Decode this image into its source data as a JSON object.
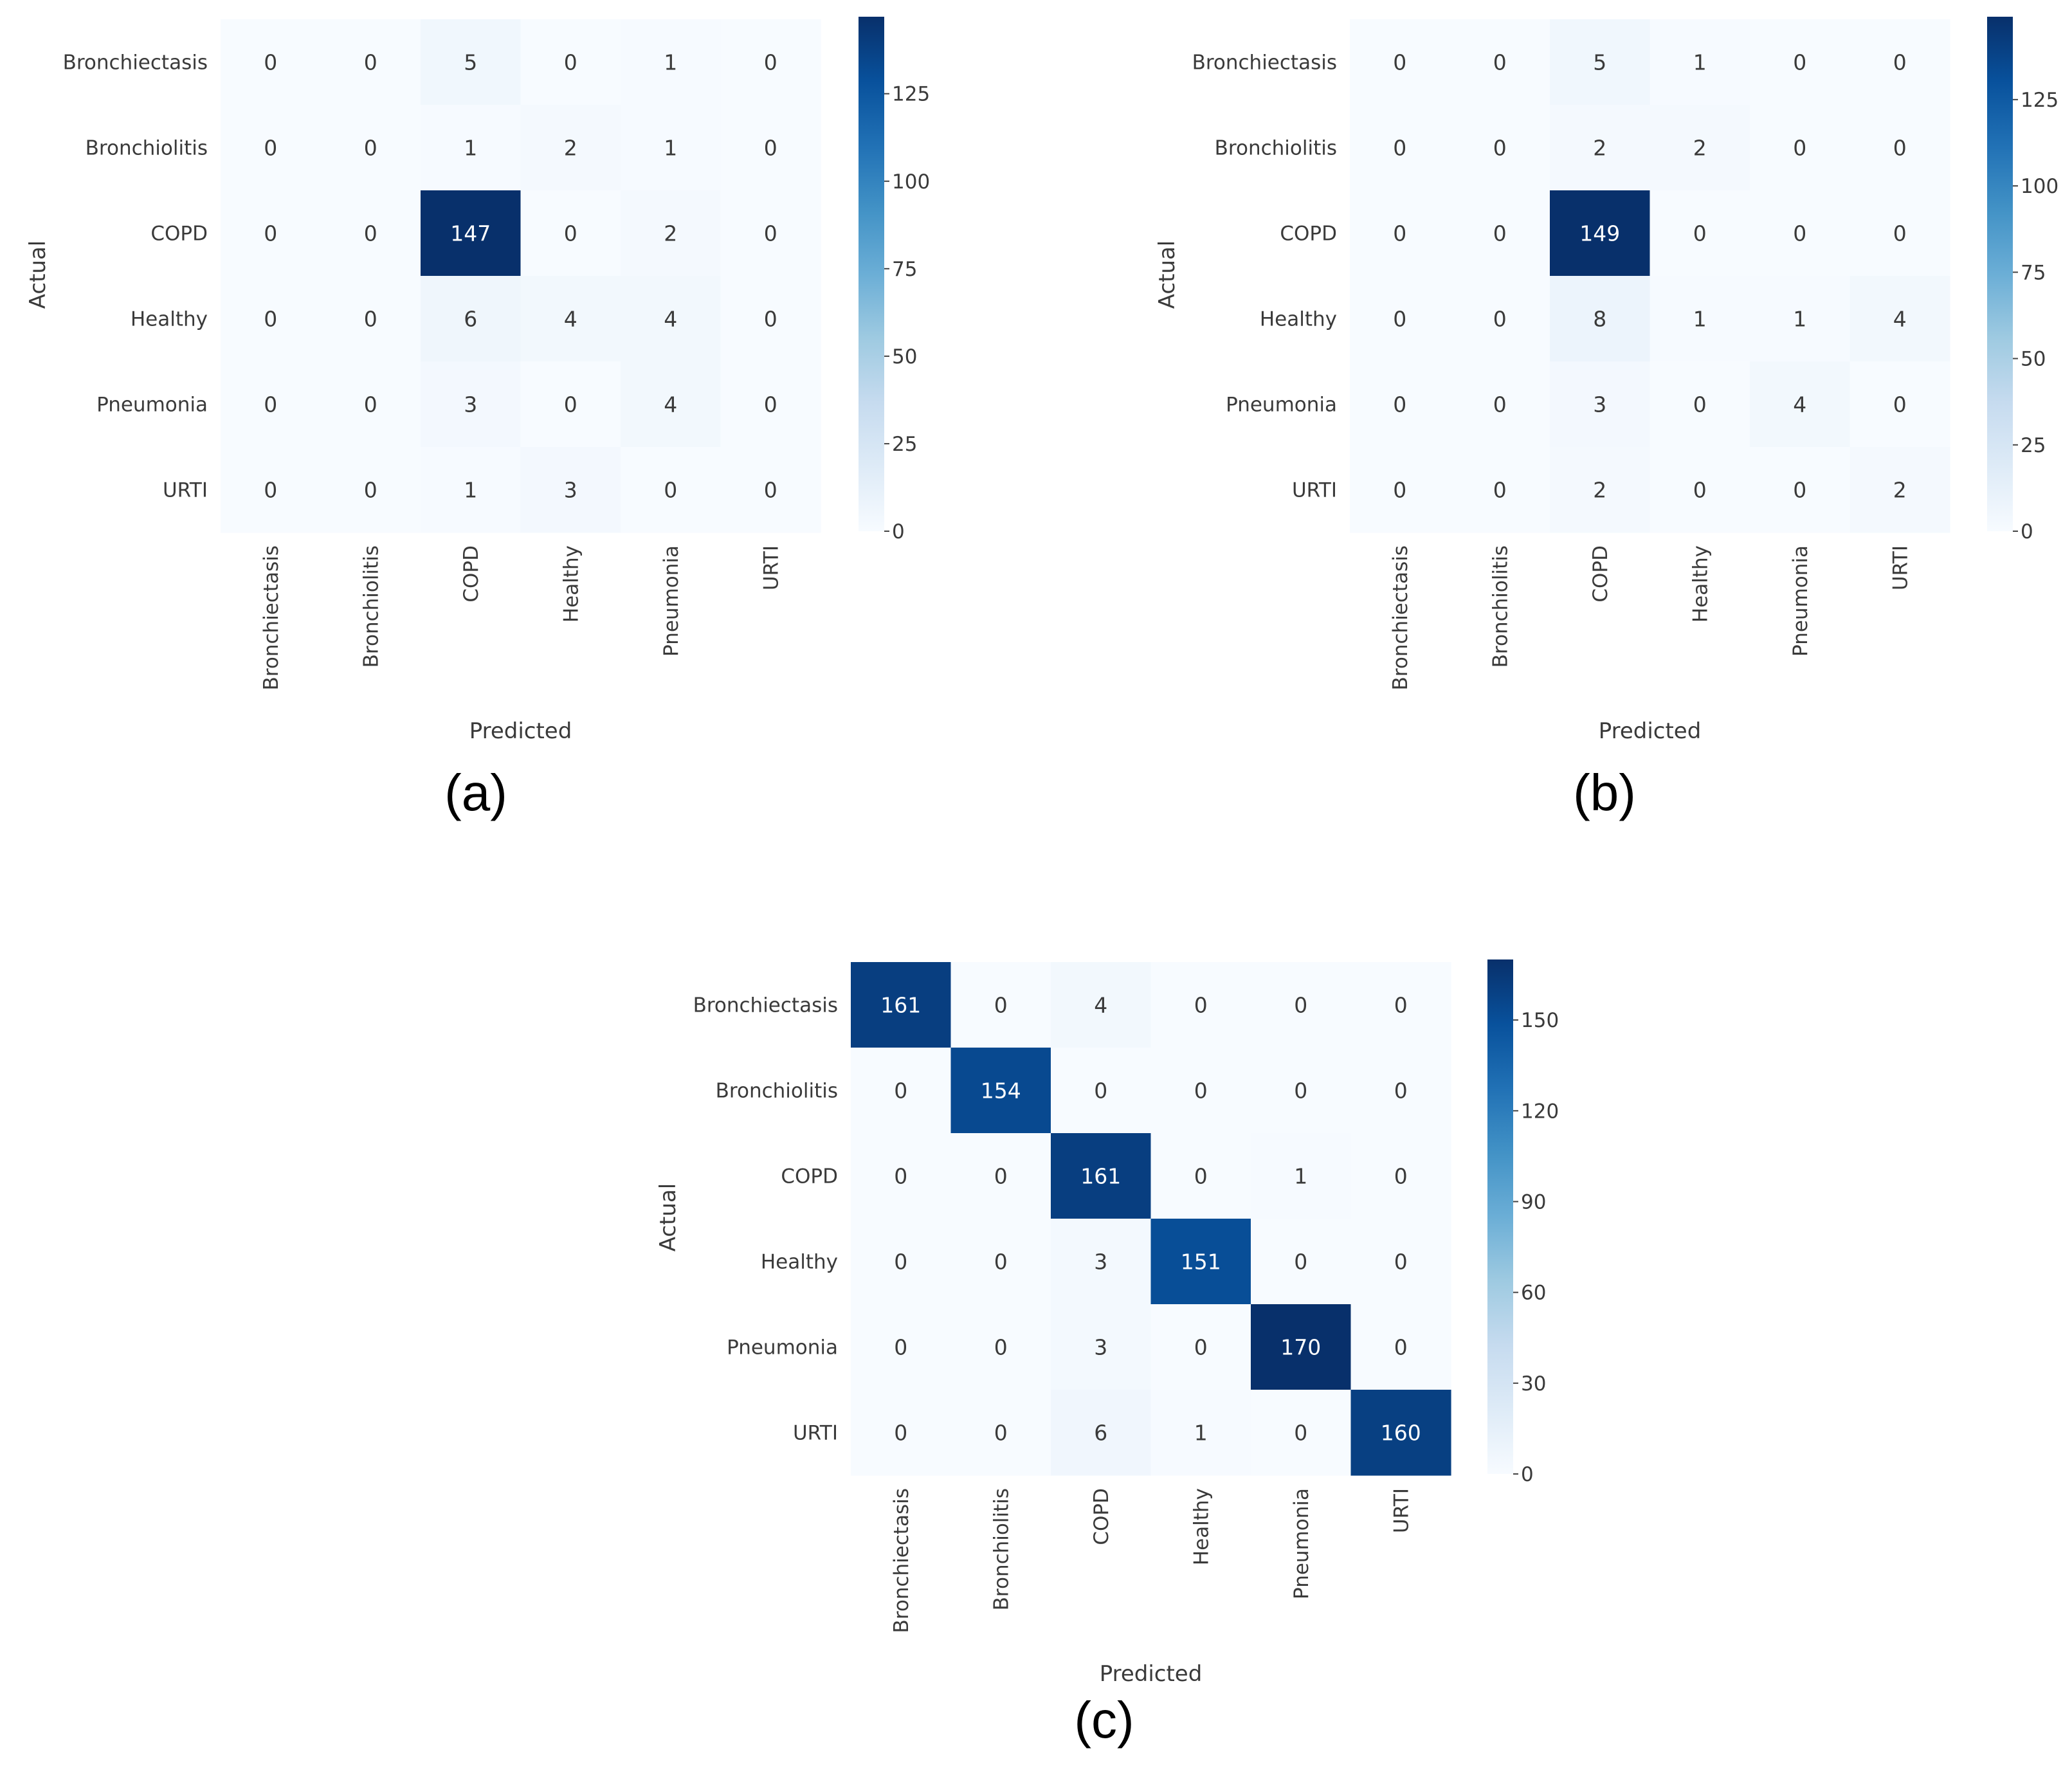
{
  "colors": {
    "colormap": [
      "#f7fbff",
      "#deebf7",
      "#c6dbef",
      "#9ecae1",
      "#6baed6",
      "#4292c6",
      "#2171b5",
      "#08519c",
      "#08306b"
    ],
    "light_text": "#ffffff",
    "dark_text": "#333333"
  },
  "chart_data": [
    {
      "type": "heatmap",
      "panel_label": "(a)",
      "xlabel": "Predicted",
      "ylabel": "Actual",
      "x_categories": [
        "Bronchiectasis",
        "Bronchiolitis",
        "COPD",
        "Healthy",
        "Pneumonia",
        "URTI"
      ],
      "y_categories": [
        "Bronchiectasis",
        "Bronchiolitis",
        "COPD",
        "Healthy",
        "Pneumonia",
        "URTI"
      ],
      "values": [
        [
          0,
          0,
          5,
          0,
          1,
          0
        ],
        [
          0,
          0,
          1,
          2,
          1,
          0
        ],
        [
          0,
          0,
          147,
          0,
          2,
          0
        ],
        [
          0,
          0,
          6,
          4,
          4,
          0
        ],
        [
          0,
          0,
          3,
          0,
          4,
          0
        ],
        [
          0,
          0,
          1,
          3,
          0,
          0
        ]
      ],
      "colorbar": {
        "min": 0,
        "max": 147,
        "ticks": [
          0,
          25,
          50,
          75,
          100,
          125
        ]
      }
    },
    {
      "type": "heatmap",
      "panel_label": "(b)",
      "xlabel": "Predicted",
      "ylabel": "Actual",
      "x_categories": [
        "Bronchiectasis",
        "Bronchiolitis",
        "COPD",
        "Healthy",
        "Pneumonia",
        "URTI"
      ],
      "y_categories": [
        "Bronchiectasis",
        "Bronchiolitis",
        "COPD",
        "Healthy",
        "Pneumonia",
        "URTI"
      ],
      "values": [
        [
          0,
          0,
          5,
          1,
          0,
          0
        ],
        [
          0,
          0,
          2,
          2,
          0,
          0
        ],
        [
          0,
          0,
          149,
          0,
          0,
          0
        ],
        [
          0,
          0,
          8,
          1,
          1,
          4
        ],
        [
          0,
          0,
          3,
          0,
          4,
          0
        ],
        [
          0,
          0,
          2,
          0,
          0,
          2
        ]
      ],
      "colorbar": {
        "min": 0,
        "max": 149,
        "ticks": [
          0,
          25,
          50,
          75,
          100,
          125
        ]
      }
    },
    {
      "type": "heatmap",
      "panel_label": "(c)",
      "xlabel": "Predicted",
      "ylabel": "Actual",
      "x_categories": [
        "Bronchiectasis",
        "Bronchiolitis",
        "COPD",
        "Healthy",
        "Pneumonia",
        "URTI"
      ],
      "y_categories": [
        "Bronchiectasis",
        "Bronchiolitis",
        "COPD",
        "Healthy",
        "Pneumonia",
        "URTI"
      ],
      "values": [
        [
          161,
          0,
          4,
          0,
          0,
          0
        ],
        [
          0,
          154,
          0,
          0,
          0,
          0
        ],
        [
          0,
          0,
          161,
          0,
          1,
          0
        ],
        [
          0,
          0,
          3,
          151,
          0,
          0
        ],
        [
          0,
          0,
          3,
          0,
          170,
          0
        ],
        [
          0,
          0,
          6,
          1,
          0,
          160
        ]
      ],
      "colorbar": {
        "min": 0,
        "max": 170,
        "ticks": [
          0,
          30,
          60,
          90,
          120,
          150
        ]
      }
    }
  ]
}
